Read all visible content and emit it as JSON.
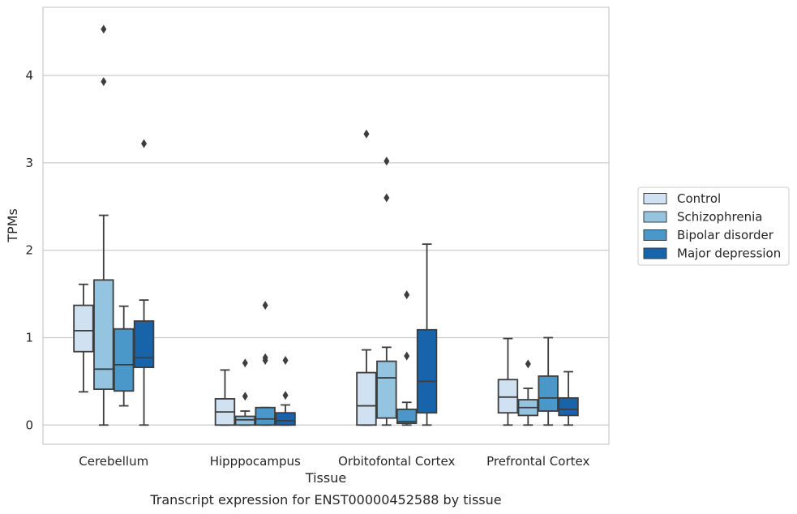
{
  "chart_data": {
    "type": "box",
    "caption": "Transcript expression for ENST00000452588 by tissue",
    "xlabel": "Tissue",
    "ylabel": "TPMs",
    "ylim": [
      -0.22,
      4.78
    ],
    "yticks": [
      0,
      1,
      2,
      3,
      4
    ],
    "grid": "horizontal",
    "legend_position": "right",
    "categories": [
      "Cerebellum",
      "Hipppocampus",
      "Orbitofontal Cortex",
      "Prefrontal Cortex"
    ],
    "series": [
      {
        "name": "Control",
        "color": "#d0e1f2",
        "boxes": [
          {
            "whisker_low": 0.38,
            "q1": 0.84,
            "median": 1.08,
            "q3": 1.37,
            "whisker_high": 1.61,
            "outliers": []
          },
          {
            "whisker_low": 0.0,
            "q1": 0.0,
            "median": 0.15,
            "q3": 0.3,
            "whisker_high": 0.63,
            "outliers": []
          },
          {
            "whisker_low": 0.0,
            "q1": 0.0,
            "median": 0.22,
            "q3": 0.6,
            "whisker_high": 0.86,
            "outliers": [
              3.33
            ]
          },
          {
            "whisker_low": 0.0,
            "q1": 0.14,
            "median": 0.32,
            "q3": 0.52,
            "whisker_high": 0.99,
            "outliers": []
          }
        ]
      },
      {
        "name": "Schizophrenia",
        "color": "#94c4df",
        "boxes": [
          {
            "whisker_low": 0.0,
            "q1": 0.41,
            "median": 0.64,
            "q3": 1.66,
            "whisker_high": 2.4,
            "outliers": [
              3.93,
              4.53
            ]
          },
          {
            "whisker_low": 0.0,
            "q1": 0.0,
            "median": 0.06,
            "q3": 0.1,
            "whisker_high": 0.16,
            "outliers": [
              0.33,
              0.71
            ]
          },
          {
            "whisker_low": 0.0,
            "q1": 0.08,
            "median": 0.54,
            "q3": 0.73,
            "whisker_high": 0.89,
            "outliers": [
              2.6,
              3.02
            ]
          },
          {
            "whisker_low": 0.0,
            "q1": 0.11,
            "median": 0.2,
            "q3": 0.29,
            "whisker_high": 0.42,
            "outliers": [
              0.7
            ]
          }
        ]
      },
      {
        "name": "Bipolar disorder",
        "color": "#4a98c9",
        "boxes": [
          {
            "whisker_low": 0.22,
            "q1": 0.39,
            "median": 0.69,
            "q3": 1.1,
            "whisker_high": 1.36,
            "outliers": []
          },
          {
            "whisker_low": 0.0,
            "q1": 0.0,
            "median": 0.07,
            "q3": 0.2,
            "whisker_high": 0.2,
            "outliers": [
              0.74,
              0.77,
              1.37
            ]
          },
          {
            "whisker_low": 0.0,
            "q1": 0.02,
            "median": 0.04,
            "q3": 0.18,
            "whisker_high": 0.26,
            "outliers": [
              0.79,
              1.49
            ]
          },
          {
            "whisker_low": 0.0,
            "q1": 0.16,
            "median": 0.31,
            "q3": 0.56,
            "whisker_high": 1.0,
            "outliers": []
          }
        ]
      },
      {
        "name": "Major depression",
        "color": "#1764ab",
        "boxes": [
          {
            "whisker_low": 0.0,
            "q1": 0.66,
            "median": 0.77,
            "q3": 1.19,
            "whisker_high": 1.43,
            "outliers": [
              3.22
            ]
          },
          {
            "whisker_low": 0.0,
            "q1": 0.0,
            "median": 0.05,
            "q3": 0.14,
            "whisker_high": 0.23,
            "outliers": [
              0.34,
              0.74
            ]
          },
          {
            "whisker_low": 0.0,
            "q1": 0.14,
            "median": 0.5,
            "q3": 1.09,
            "whisker_high": 2.07,
            "outliers": []
          },
          {
            "whisker_low": 0.0,
            "q1": 0.11,
            "median": 0.18,
            "q3": 0.31,
            "whisker_high": 0.61,
            "outliers": []
          }
        ]
      }
    ]
  }
}
